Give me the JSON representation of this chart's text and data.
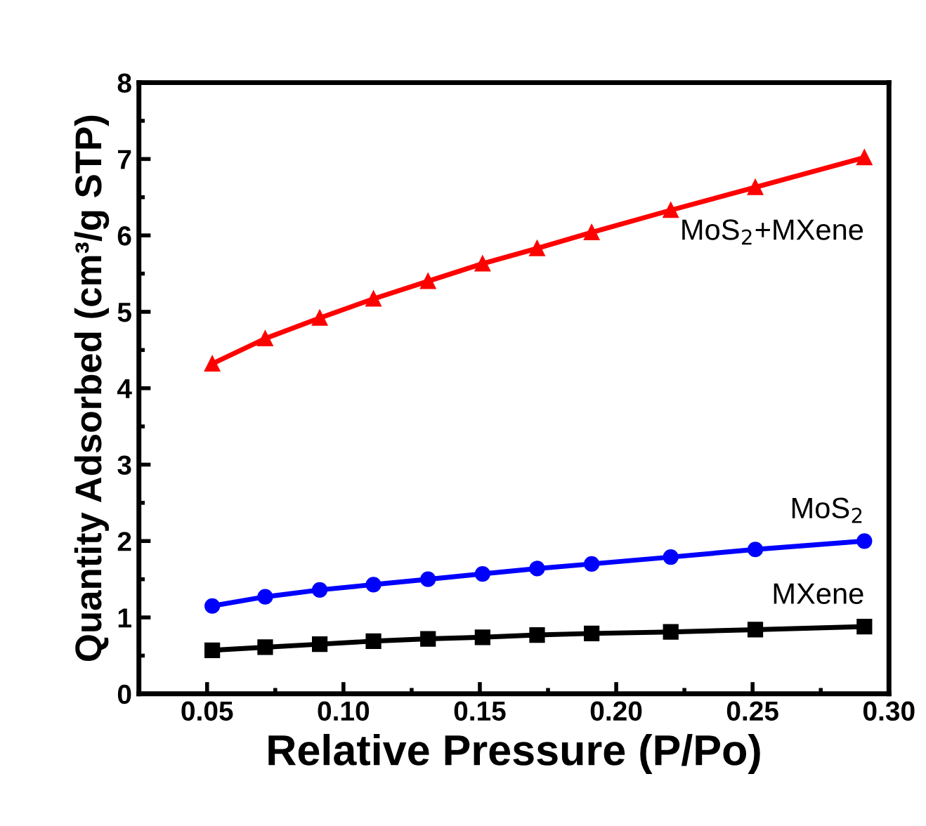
{
  "chart_data": {
    "type": "line",
    "xlabel": "Relative Pressure (P/Po)",
    "ylabel": "Quantity Adsorbed (cm³/g STP)",
    "x": [
      0.0519,
      0.0713,
      0.0913,
      0.111,
      0.131,
      0.151,
      0.171,
      0.191,
      0.22,
      0.251,
      0.291
    ],
    "series": [
      {
        "name": "MoS$_{2}$+MXene",
        "color": "#ff0000",
        "marker": "triangle",
        "values": [
          4.32,
          4.65,
          4.92,
          5.17,
          5.4,
          5.63,
          5.83,
          6.04,
          6.33,
          6.63,
          7.02
        ]
      },
      {
        "name": "MoS$_{2}$",
        "color": "#0000ff",
        "marker": "circle",
        "values": [
          1.15,
          1.27,
          1.36,
          1.43,
          1.5,
          1.57,
          1.64,
          1.7,
          1.79,
          1.89,
          2.0
        ]
      },
      {
        "name": "MXene",
        "color": "#000000",
        "marker": "square",
        "values": [
          0.57,
          0.61,
          0.65,
          0.69,
          0.72,
          0.74,
          0.77,
          0.79,
          0.81,
          0.84,
          0.88
        ]
      }
    ],
    "xlim": [
      0.025,
      0.3
    ],
    "xticks": [
      {
        "value": 0.05,
        "label": "0.05"
      },
      {
        "value": 0.1,
        "label": "0.10"
      },
      {
        "value": 0.15,
        "label": "0.15"
      },
      {
        "value": 0.2,
        "label": "0.20"
      },
      {
        "value": 0.25,
        "label": "0.25"
      },
      {
        "value": 0.3,
        "label": "0.30"
      }
    ],
    "ylim": [
      0,
      8
    ],
    "yticks": [
      0,
      1,
      2,
      3,
      4,
      5,
      6,
      7,
      8
    ],
    "grid": false,
    "legend": false,
    "line_style": "solid"
  }
}
